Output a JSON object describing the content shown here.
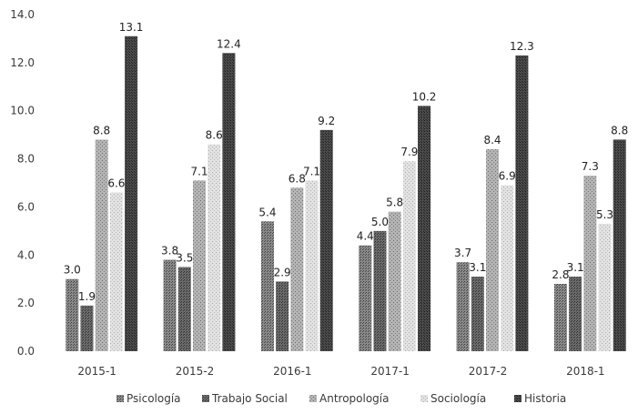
{
  "chart_data": {
    "type": "bar",
    "title": "",
    "xlabel": "",
    "ylabel": "",
    "ylim": [
      0,
      14
    ],
    "yticks": [
      "0.0",
      "2.0",
      "4.0",
      "6.0",
      "8.0",
      "10.0",
      "12.0",
      "14.0"
    ],
    "grid": false,
    "legend_position": "bottom",
    "categories": [
      "2015-1",
      "2015-2",
      "2016-1",
      "2017-1",
      "2017-2",
      "2018-1"
    ],
    "series": [
      {
        "name": "Psicología",
        "color": "#6e6e6e",
        "values": [
          3.0,
          3.8,
          5.4,
          4.4,
          3.7,
          2.8
        ],
        "labels": [
          "3.0",
          "3.8",
          "5.4",
          "4.4",
          "3.7",
          "2.8"
        ]
      },
      {
        "name": "Trabajo Social",
        "color": "#5a5a5a",
        "values": [
          1.9,
          3.5,
          2.9,
          5.0,
          3.1,
          3.1
        ],
        "labels": [
          "1.9",
          "3.5",
          "2.9",
          "5.0",
          "3.1",
          "3.1"
        ]
      },
      {
        "name": "Antropología",
        "color": "#9a9a9a",
        "values": [
          8.8,
          7.1,
          6.8,
          5.8,
          8.4,
          7.3
        ],
        "labels": [
          "8.8",
          "7.1",
          "6.8",
          "5.8",
          "8.4",
          "7.3"
        ]
      },
      {
        "name": "Sociología",
        "color": "#cfcfcf",
        "values": [
          6.6,
          8.6,
          7.1,
          7.9,
          6.9,
          5.3
        ],
        "labels": [
          "6.6",
          "8.6",
          "7.1",
          "7.9",
          "6.9",
          "5.3"
        ]
      },
      {
        "name": "Historia",
        "color": "#3c3c3c",
        "values": [
          13.1,
          12.4,
          9.2,
          10.2,
          12.3,
          8.8
        ],
        "labels": [
          "13.1",
          "12.4",
          "9.2",
          "10.2",
          "12.3",
          "8.8"
        ]
      }
    ]
  }
}
